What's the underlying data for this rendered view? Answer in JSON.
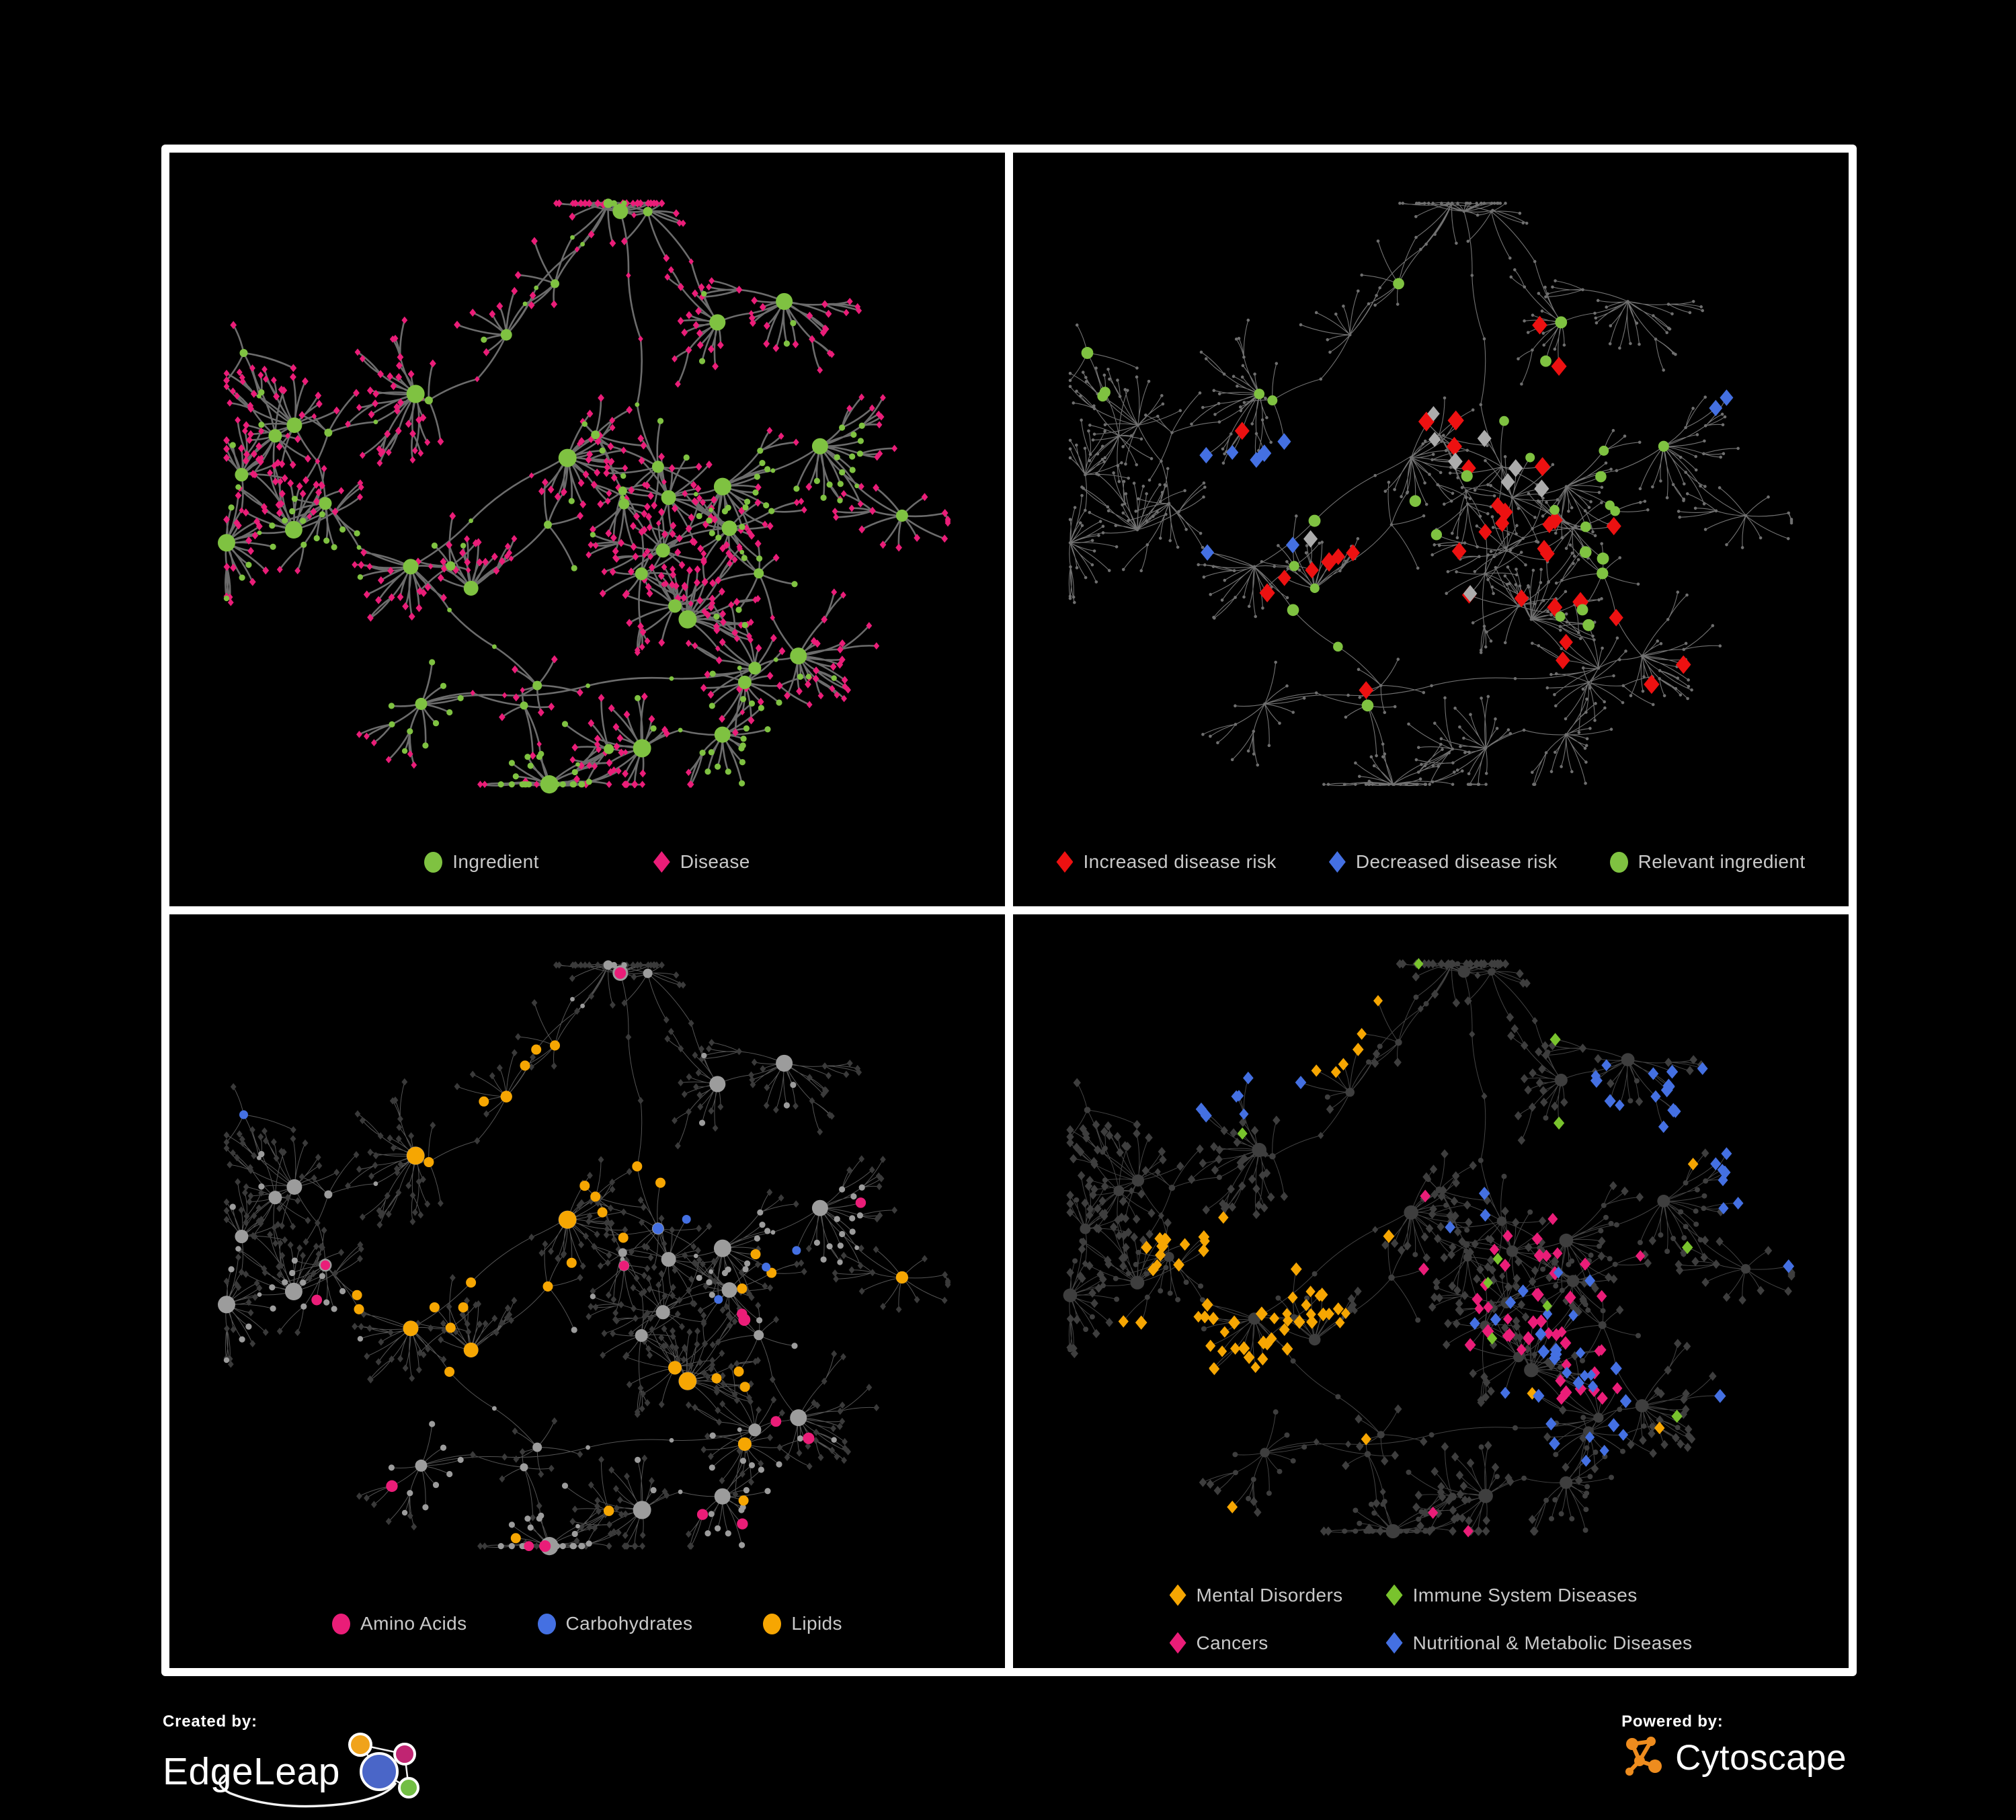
{
  "panels": [
    {
      "id": "ingredient-disease",
      "legend_layout": "row1",
      "legend": [
        {
          "shape": "circle",
          "color": "#7FC241",
          "label": "Ingredient"
        },
        {
          "shape": "diamond",
          "color": "#EA1D78",
          "label": "Disease"
        }
      ]
    },
    {
      "id": "disease-risk",
      "legend_layout": "row2",
      "legend": [
        {
          "shape": "diamond",
          "color": "#ED1111",
          "label": "Increased disease risk"
        },
        {
          "shape": "diamond",
          "color": "#4470E2",
          "label": "Decreased disease risk"
        },
        {
          "shape": "circle",
          "color": "#7FC241",
          "label": "Relevant ingredient"
        }
      ]
    },
    {
      "id": "nutrient-groups",
      "legend_layout": "row3",
      "legend": [
        {
          "shape": "circle",
          "color": "#EA1D78",
          "label": "Amino Acids"
        },
        {
          "shape": "circle",
          "color": "#4470E2",
          "label": "Carbohydrates"
        },
        {
          "shape": "circle",
          "color": "#F6A602",
          "label": "Lipids"
        }
      ]
    },
    {
      "id": "disease-classes",
      "legend_layout": "grid2",
      "legend": [
        {
          "shape": "diamond",
          "color": "#F6A602",
          "label": "Mental Disorders"
        },
        {
          "shape": "diamond",
          "color": "#79C32D",
          "label": "Immune System Diseases"
        },
        {
          "shape": "diamond",
          "color": "#EA1D78",
          "label": "Cancers"
        },
        {
          "shape": "diamond",
          "color": "#4470E2",
          "label": "Nutritional & Metabolic Diseases"
        }
      ]
    }
  ],
  "network_styles": {
    "p1": {
      "edge": "#787878",
      "ingredient": "#7FC241",
      "disease": "#EA1D78"
    },
    "p2": {
      "edge": "#8E8E8E",
      "base": "#6F6F6F",
      "increased": "#ED1111",
      "decreased": "#4470E2",
      "neutral": "#ACACAC",
      "ingredient": "#7FC241"
    },
    "p3": {
      "edge": "#A8A8A8",
      "ingredient_base": "#9C9C9C",
      "disease_base": "#3A3A3A",
      "amino": "#EA1D78",
      "carb": "#4470E2",
      "lipid": "#F6A602"
    },
    "p4": {
      "edge": "#A0A0A0",
      "base": "#3E3E3E",
      "mental": "#F6A602",
      "immune": "#79C32D",
      "cancer": "#EA1D78",
      "nutri": "#4470E2"
    }
  },
  "footer": {
    "created_by_label": "Created by:",
    "edgeleap_name": "EdgeLeap",
    "powered_by_label": "Powered by:",
    "cytoscape_name": "Cytoscape",
    "edgeleap_logo_colors": {
      "orange": "#F0A31B",
      "magenta": "#C02572",
      "blue": "#4A66C8",
      "green": "#72BE44"
    },
    "cytoscape_logo_color": "#EE8C1E"
  }
}
